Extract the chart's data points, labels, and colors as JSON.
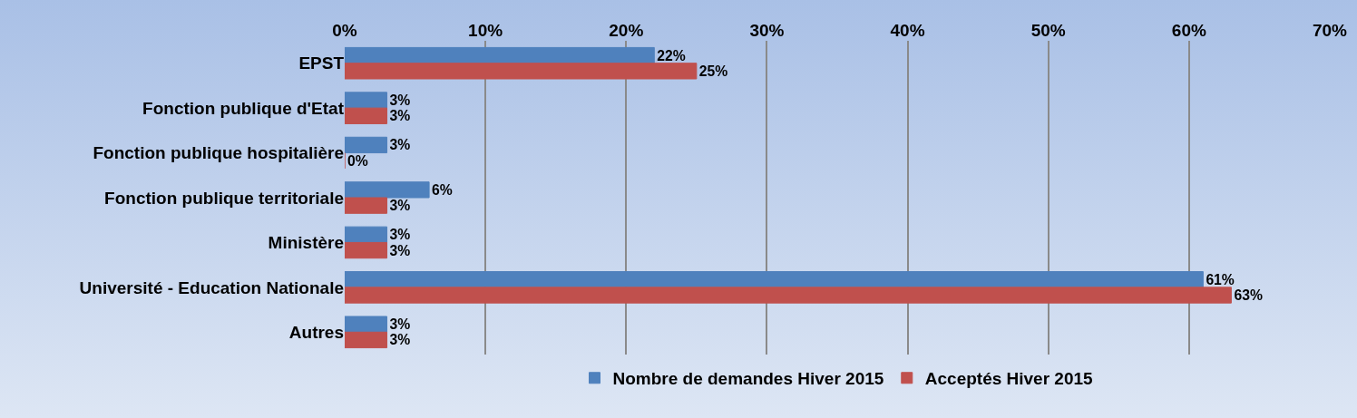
{
  "chart_data": {
    "type": "bar",
    "orientation": "horizontal",
    "categories": [
      "EPST",
      "Fonction publique d'Etat",
      "Fonction publique hospitalière",
      "Fonction publique territoriale",
      "Ministère",
      "Université - Education Nationale",
      "Autres"
    ],
    "series": [
      {
        "name": "Nombre de demandes Hiver 2015",
        "color": "#4f81bd",
        "values": [
          22,
          3,
          3,
          6,
          3,
          61,
          3
        ],
        "value_labels": [
          "22%",
          "3%",
          "3%",
          "6%",
          "3%",
          "61%",
          "3%"
        ]
      },
      {
        "name": "Acceptés Hiver 2015",
        "color": "#c0504d",
        "values": [
          25,
          3,
          0,
          3,
          3,
          63,
          3
        ],
        "value_labels": [
          "25%",
          "3%",
          "0%",
          "3%",
          "3%",
          "63%",
          "3%"
        ]
      }
    ],
    "xlim": [
      0,
      70
    ],
    "xticks": [
      {
        "value": 0,
        "label": "0%"
      },
      {
        "value": 10,
        "label": "10%"
      },
      {
        "value": 20,
        "label": "20%"
      },
      {
        "value": 30,
        "label": "30%"
      },
      {
        "value": 40,
        "label": "40%"
      },
      {
        "value": 50,
        "label": "50%"
      },
      {
        "value": 60,
        "label": "60%"
      },
      {
        "value": 70,
        "label": "70%"
      }
    ],
    "grid": "x",
    "legend": "bottom"
  }
}
